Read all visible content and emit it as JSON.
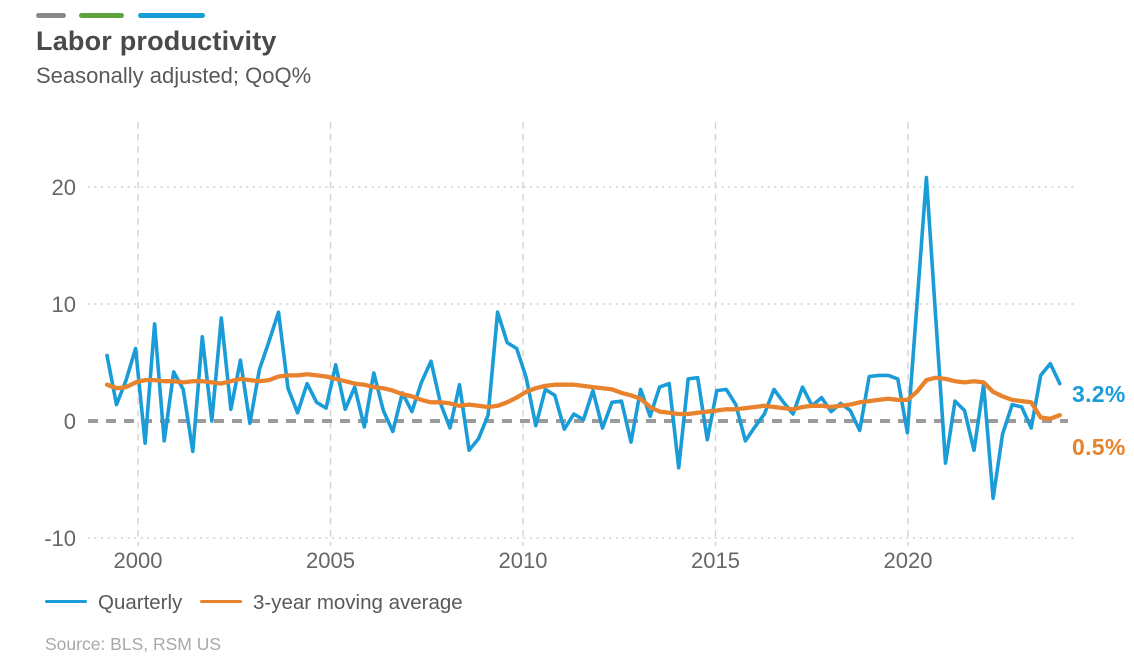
{
  "header": {
    "title": "Labor productivity",
    "subtitle": "Seasonally adjusted; QoQ%"
  },
  "decoration": {
    "colors": [
      "#8a8a8a",
      "#5fa33e",
      "#199cd8"
    ]
  },
  "legend": [
    {
      "label": "Quarterly",
      "color": "#199cd8"
    },
    {
      "label": "3-year moving average",
      "color": "#e8822c"
    }
  ],
  "source": "Source: BLS, RSM US",
  "colors": {
    "quarterly_line": "#199cd8",
    "moving_average_line": "#e8822c",
    "zero_line": "#9b9b9b",
    "gridline": "#d2d2d2",
    "axis_text": "#666666"
  },
  "chart_data": {
    "type": "line",
    "title": "Labor productivity",
    "subtitle": "Seasonally adjusted; QoQ%",
    "xlabel": "",
    "ylabel": "",
    "x_start": "1999Q1",
    "x_end": "2024Q1",
    "frequency": "quarterly",
    "x_ticks": [
      2000,
      2005,
      2010,
      2015,
      2020
    ],
    "y_ticks": [
      20,
      10,
      0,
      -10
    ],
    "ylim": [
      -10,
      23
    ],
    "grid": true,
    "zero_line_dashed": true,
    "legend_position": "bottom",
    "series": [
      {
        "name": "Quarterly",
        "color": "#199cd8",
        "end_label": "3.2%",
        "values": [
          5.6,
          1.4,
          3.5,
          6.2,
          -1.9,
          8.3,
          -1.7,
          4.2,
          2.7,
          -2.6,
          7.2,
          0.0,
          8.8,
          1.0,
          5.2,
          -0.2,
          4.4,
          6.8,
          9.3,
          2.8,
          0.7,
          3.2,
          1.6,
          1.1,
          4.8,
          1.0,
          2.9,
          -0.5,
          4.1,
          0.9,
          -0.9,
          2.4,
          0.8,
          3.3,
          5.1,
          1.5,
          -0.6,
          3.1,
          -2.5,
          -1.5,
          0.5,
          9.3,
          6.7,
          6.2,
          3.7,
          -0.4,
          2.7,
          2.2,
          -0.7,
          0.6,
          0.1,
          2.6,
          -0.6,
          1.6,
          1.7,
          -1.8,
          2.7,
          0.4,
          2.9,
          3.2,
          -4.0,
          3.6,
          3.7,
          -1.6,
          2.6,
          2.7,
          1.4,
          -1.7,
          -0.5,
          0.6,
          2.7,
          1.6,
          0.6,
          2.9,
          1.3,
          2.0,
          0.8,
          1.5,
          0.9,
          -0.8,
          3.8,
          3.9,
          3.9,
          3.6,
          -1.0,
          9.9,
          20.8,
          8.6,
          -3.6,
          1.7,
          0.9,
          -2.5,
          3.1,
          -6.6,
          -1.1,
          1.4,
          1.2,
          -0.6,
          3.9,
          4.9,
          3.2
        ]
      },
      {
        "name": "3-year moving average",
        "color": "#e8822c",
        "end_label": "0.5%",
        "values": [
          3.1,
          2.8,
          2.9,
          3.3,
          3.5,
          3.5,
          3.4,
          3.4,
          3.3,
          3.4,
          3.4,
          3.3,
          3.2,
          3.4,
          3.6,
          3.5,
          3.4,
          3.5,
          3.8,
          3.9,
          3.9,
          4.0,
          3.9,
          3.8,
          3.6,
          3.4,
          3.2,
          3.1,
          2.9,
          2.8,
          2.6,
          2.3,
          2.1,
          1.8,
          1.6,
          1.6,
          1.5,
          1.3,
          1.4,
          1.3,
          1.2,
          1.3,
          1.6,
          2.0,
          2.5,
          2.8,
          3.0,
          3.1,
          3.1,
          3.1,
          3.0,
          2.9,
          2.8,
          2.7,
          2.4,
          2.2,
          1.9,
          1.2,
          0.8,
          0.7,
          0.6,
          0.6,
          0.7,
          0.8,
          0.9,
          1.0,
          1.0,
          1.1,
          1.2,
          1.3,
          1.2,
          1.1,
          1.0,
          1.2,
          1.3,
          1.3,
          1.2,
          1.3,
          1.4,
          1.6,
          1.7,
          1.8,
          1.9,
          1.8,
          1.8,
          2.5,
          3.5,
          3.7,
          3.6,
          3.4,
          3.3,
          3.4,
          3.3,
          2.5,
          2.1,
          1.8,
          1.7,
          1.6,
          0.3,
          0.2,
          0.5
        ]
      }
    ]
  }
}
